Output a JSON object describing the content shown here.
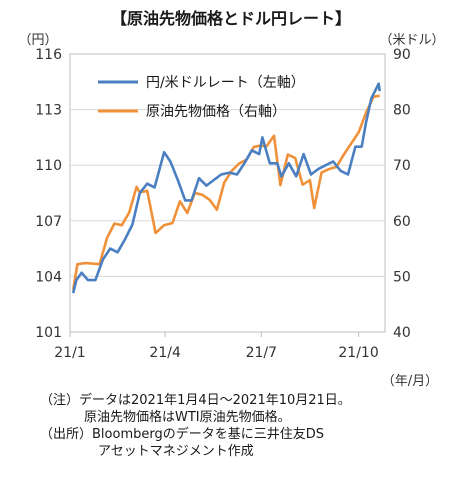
{
  "notes": {
    "note_label": "（注）",
    "note_line1": "データは2021年1月4日～2021年10月21日。",
    "note_line2": "原油先物価格はWTI原油先物価格。",
    "source_label": "（出所）",
    "source_line1": "Bloombergのデータを基に三井住友DS",
    "source_line2": "アセットマネジメント作成"
  },
  "colors": {
    "usdjpy": "#4a7fc1",
    "wti": "#f0913a",
    "grid": "#d9d9d9"
  },
  "chart_data": {
    "type": "line",
    "title": "【原油先物価格とドル円レート】",
    "y_left_label": "（円）",
    "y_right_label": "（米ドル）",
    "x_unit_label": "（年/月）",
    "y_left_lim": [
      101,
      116
    ],
    "y_left_ticks": [
      101,
      104,
      107,
      110,
      113,
      116
    ],
    "y_right_lim": [
      40,
      90
    ],
    "y_right_ticks": [
      40,
      50,
      60,
      70,
      80,
      90
    ],
    "x_ticks": [
      "21/1",
      "21/4",
      "21/7",
      "21/10"
    ],
    "x_tick_dates": [
      "2021-01-01",
      "2021-04-01",
      "2021-07-01",
      "2021-10-01"
    ],
    "x_range": [
      "2021-01-04",
      "2021-10-21"
    ],
    "legend_position": "top-left",
    "grid": "horizontal",
    "series": [
      {
        "name": "円/米ドルレート（左軸）",
        "axis": "left",
        "points": [
          [
            "2021-01-04",
            103.1
          ],
          [
            "2021-01-07",
            103.8
          ],
          [
            "2021-01-12",
            104.2
          ],
          [
            "2021-01-18",
            103.8
          ],
          [
            "2021-01-25",
            103.8
          ],
          [
            "2021-02-01",
            104.9
          ],
          [
            "2021-02-08",
            105.5
          ],
          [
            "2021-02-15",
            105.3
          ],
          [
            "2021-02-22",
            106.0
          ],
          [
            "2021-03-01",
            106.8
          ],
          [
            "2021-03-08",
            108.5
          ],
          [
            "2021-03-15",
            109.0
          ],
          [
            "2021-03-22",
            108.8
          ],
          [
            "2021-03-31",
            110.7
          ],
          [
            "2021-04-06",
            110.2
          ],
          [
            "2021-04-13",
            109.2
          ],
          [
            "2021-04-20",
            108.1
          ],
          [
            "2021-04-26",
            108.1
          ],
          [
            "2021-05-03",
            109.3
          ],
          [
            "2021-05-10",
            108.9
          ],
          [
            "2021-05-17",
            109.2
          ],
          [
            "2021-05-24",
            109.5
          ],
          [
            "2021-06-01",
            109.6
          ],
          [
            "2021-06-08",
            109.5
          ],
          [
            "2021-06-15",
            110.1
          ],
          [
            "2021-06-22",
            110.8
          ],
          [
            "2021-06-29",
            110.6
          ],
          [
            "2021-07-02",
            111.5
          ],
          [
            "2021-07-09",
            110.1
          ],
          [
            "2021-07-16",
            110.1
          ],
          [
            "2021-07-20",
            109.4
          ],
          [
            "2021-07-27",
            110.1
          ],
          [
            "2021-08-03",
            109.4
          ],
          [
            "2021-08-10",
            110.6
          ],
          [
            "2021-08-17",
            109.5
          ],
          [
            "2021-08-24",
            109.8
          ],
          [
            "2021-08-31",
            110.0
          ],
          [
            "2021-09-07",
            110.2
          ],
          [
            "2021-09-14",
            109.7
          ],
          [
            "2021-09-21",
            109.5
          ],
          [
            "2021-09-28",
            111.0
          ],
          [
            "2021-10-04",
            111.0
          ],
          [
            "2021-10-08",
            112.3
          ],
          [
            "2021-10-13",
            113.6
          ],
          [
            "2021-10-20",
            114.4
          ],
          [
            "2021-10-21",
            114.0
          ]
        ]
      },
      {
        "name": "原油先物価格（右軸）",
        "axis": "right",
        "points": [
          [
            "2021-01-04",
            47.6
          ],
          [
            "2021-01-08",
            52.2
          ],
          [
            "2021-01-15",
            52.4
          ],
          [
            "2021-01-22",
            52.3
          ],
          [
            "2021-01-29",
            52.2
          ],
          [
            "2021-02-05",
            56.9
          ],
          [
            "2021-02-12",
            59.5
          ],
          [
            "2021-02-19",
            59.2
          ],
          [
            "2021-02-26",
            61.5
          ],
          [
            "2021-03-05",
            66.1
          ],
          [
            "2021-03-08",
            65.1
          ],
          [
            "2021-03-15",
            65.4
          ],
          [
            "2021-03-23",
            57.8
          ],
          [
            "2021-03-31",
            59.2
          ],
          [
            "2021-04-08",
            59.6
          ],
          [
            "2021-04-15",
            63.5
          ],
          [
            "2021-04-22",
            61.4
          ],
          [
            "2021-04-29",
            65.0
          ],
          [
            "2021-05-06",
            64.7
          ],
          [
            "2021-05-13",
            63.8
          ],
          [
            "2021-05-20",
            62.0
          ],
          [
            "2021-05-27",
            66.9
          ],
          [
            "2021-06-03",
            69.0
          ],
          [
            "2021-06-10",
            70.3
          ],
          [
            "2021-06-17",
            71.0
          ],
          [
            "2021-06-24",
            73.3
          ],
          [
            "2021-06-30",
            73.5
          ],
          [
            "2021-07-06",
            73.4
          ],
          [
            "2021-07-13",
            75.3
          ],
          [
            "2021-07-19",
            66.4
          ],
          [
            "2021-07-26",
            71.9
          ],
          [
            "2021-08-02",
            71.3
          ],
          [
            "2021-08-09",
            66.5
          ],
          [
            "2021-08-16",
            67.3
          ],
          [
            "2021-08-20",
            62.3
          ],
          [
            "2021-08-27",
            68.7
          ],
          [
            "2021-09-03",
            69.3
          ],
          [
            "2021-09-10",
            69.7
          ],
          [
            "2021-09-17",
            71.9
          ],
          [
            "2021-09-24",
            73.9
          ],
          [
            "2021-10-01",
            75.9
          ],
          [
            "2021-10-08",
            79.4
          ],
          [
            "2021-10-15",
            82.3
          ],
          [
            "2021-10-21",
            82.5
          ]
        ]
      }
    ]
  }
}
